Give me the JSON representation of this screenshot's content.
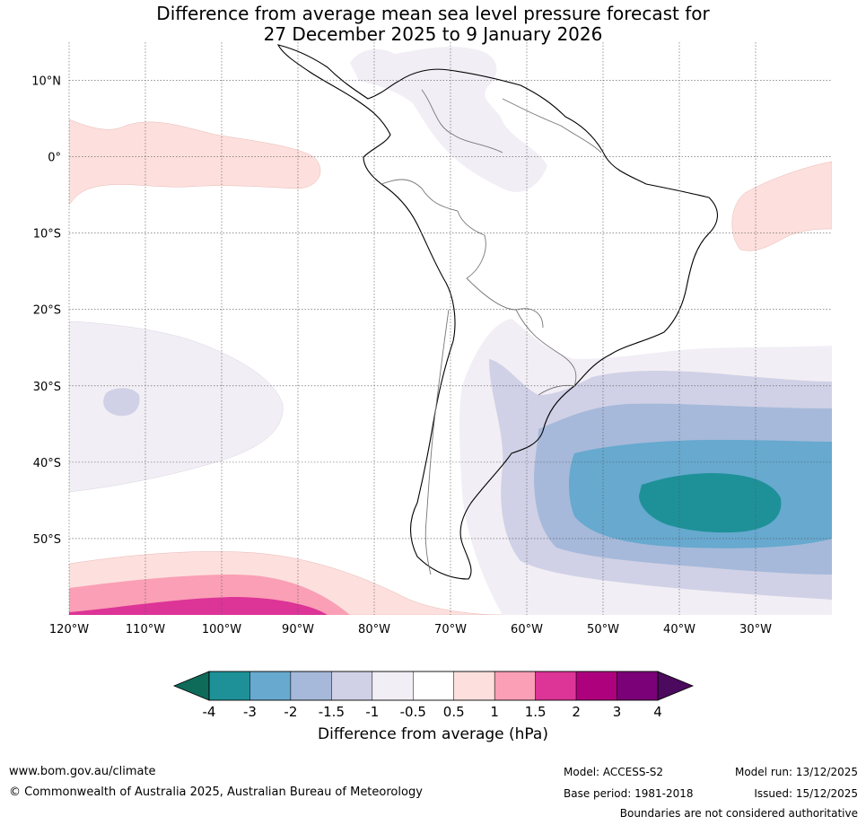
{
  "title": {
    "line1": "Difference from average mean sea level pressure forecast for",
    "line2": "27 December 2025 to 9 January 2026"
  },
  "map": {
    "lon_min": -120,
    "lon_max": -20,
    "lat_min": -60,
    "lat_max": 15,
    "lat_ticks": [
      {
        "value": 10,
        "label": "10°N"
      },
      {
        "value": 0,
        "label": "0°"
      },
      {
        "value": -10,
        "label": "10°S"
      },
      {
        "value": -20,
        "label": "20°S"
      },
      {
        "value": -30,
        "label": "30°S"
      },
      {
        "value": -40,
        "label": "40°S"
      },
      {
        "value": -50,
        "label": "50°S"
      }
    ],
    "lon_ticks": [
      {
        "value": -120,
        "label": "120°W"
      },
      {
        "value": -110,
        "label": "110°W"
      },
      {
        "value": -100,
        "label": "100°W"
      },
      {
        "value": -90,
        "label": "90°W"
      },
      {
        "value": -80,
        "label": "80°W"
      },
      {
        "value": -70,
        "label": "70°W"
      },
      {
        "value": -60,
        "label": "60°W"
      },
      {
        "value": -50,
        "label": "50°W"
      },
      {
        "value": -40,
        "label": "40°W"
      },
      {
        "value": -30,
        "label": "30°W"
      }
    ]
  },
  "colorbar": {
    "title": "Difference from average (hPa)",
    "labels": [
      "-4",
      "-3",
      "-2",
      "-1.5",
      "-1",
      "-0.5",
      "0.5",
      "1",
      "1.5",
      "2",
      "3",
      "4"
    ],
    "low_extend_color": "#0e6b5a",
    "high_extend_color": "#4b0a5e",
    "colors": [
      "#1e9198",
      "#67a9cf",
      "#a6b9da",
      "#d0d1e6",
      "#f2eef5",
      "#ffffff",
      "#fde0dd",
      "#fa9fb5",
      "#dd3497",
      "#ae017e",
      "#7a0177"
    ]
  },
  "footer": {
    "url": "www.bom.gov.au/climate",
    "copyright": "© Commonwealth of Australia 2025, Australian Bureau of Meteorology",
    "model": "Model: ACCESS-S2",
    "base_period": "Base period: 1981-2018",
    "model_run": "Model run: 13/12/2025",
    "issued": "Issued: 15/12/2025",
    "disclaimer": "Boundaries are not considered authoritative"
  }
}
